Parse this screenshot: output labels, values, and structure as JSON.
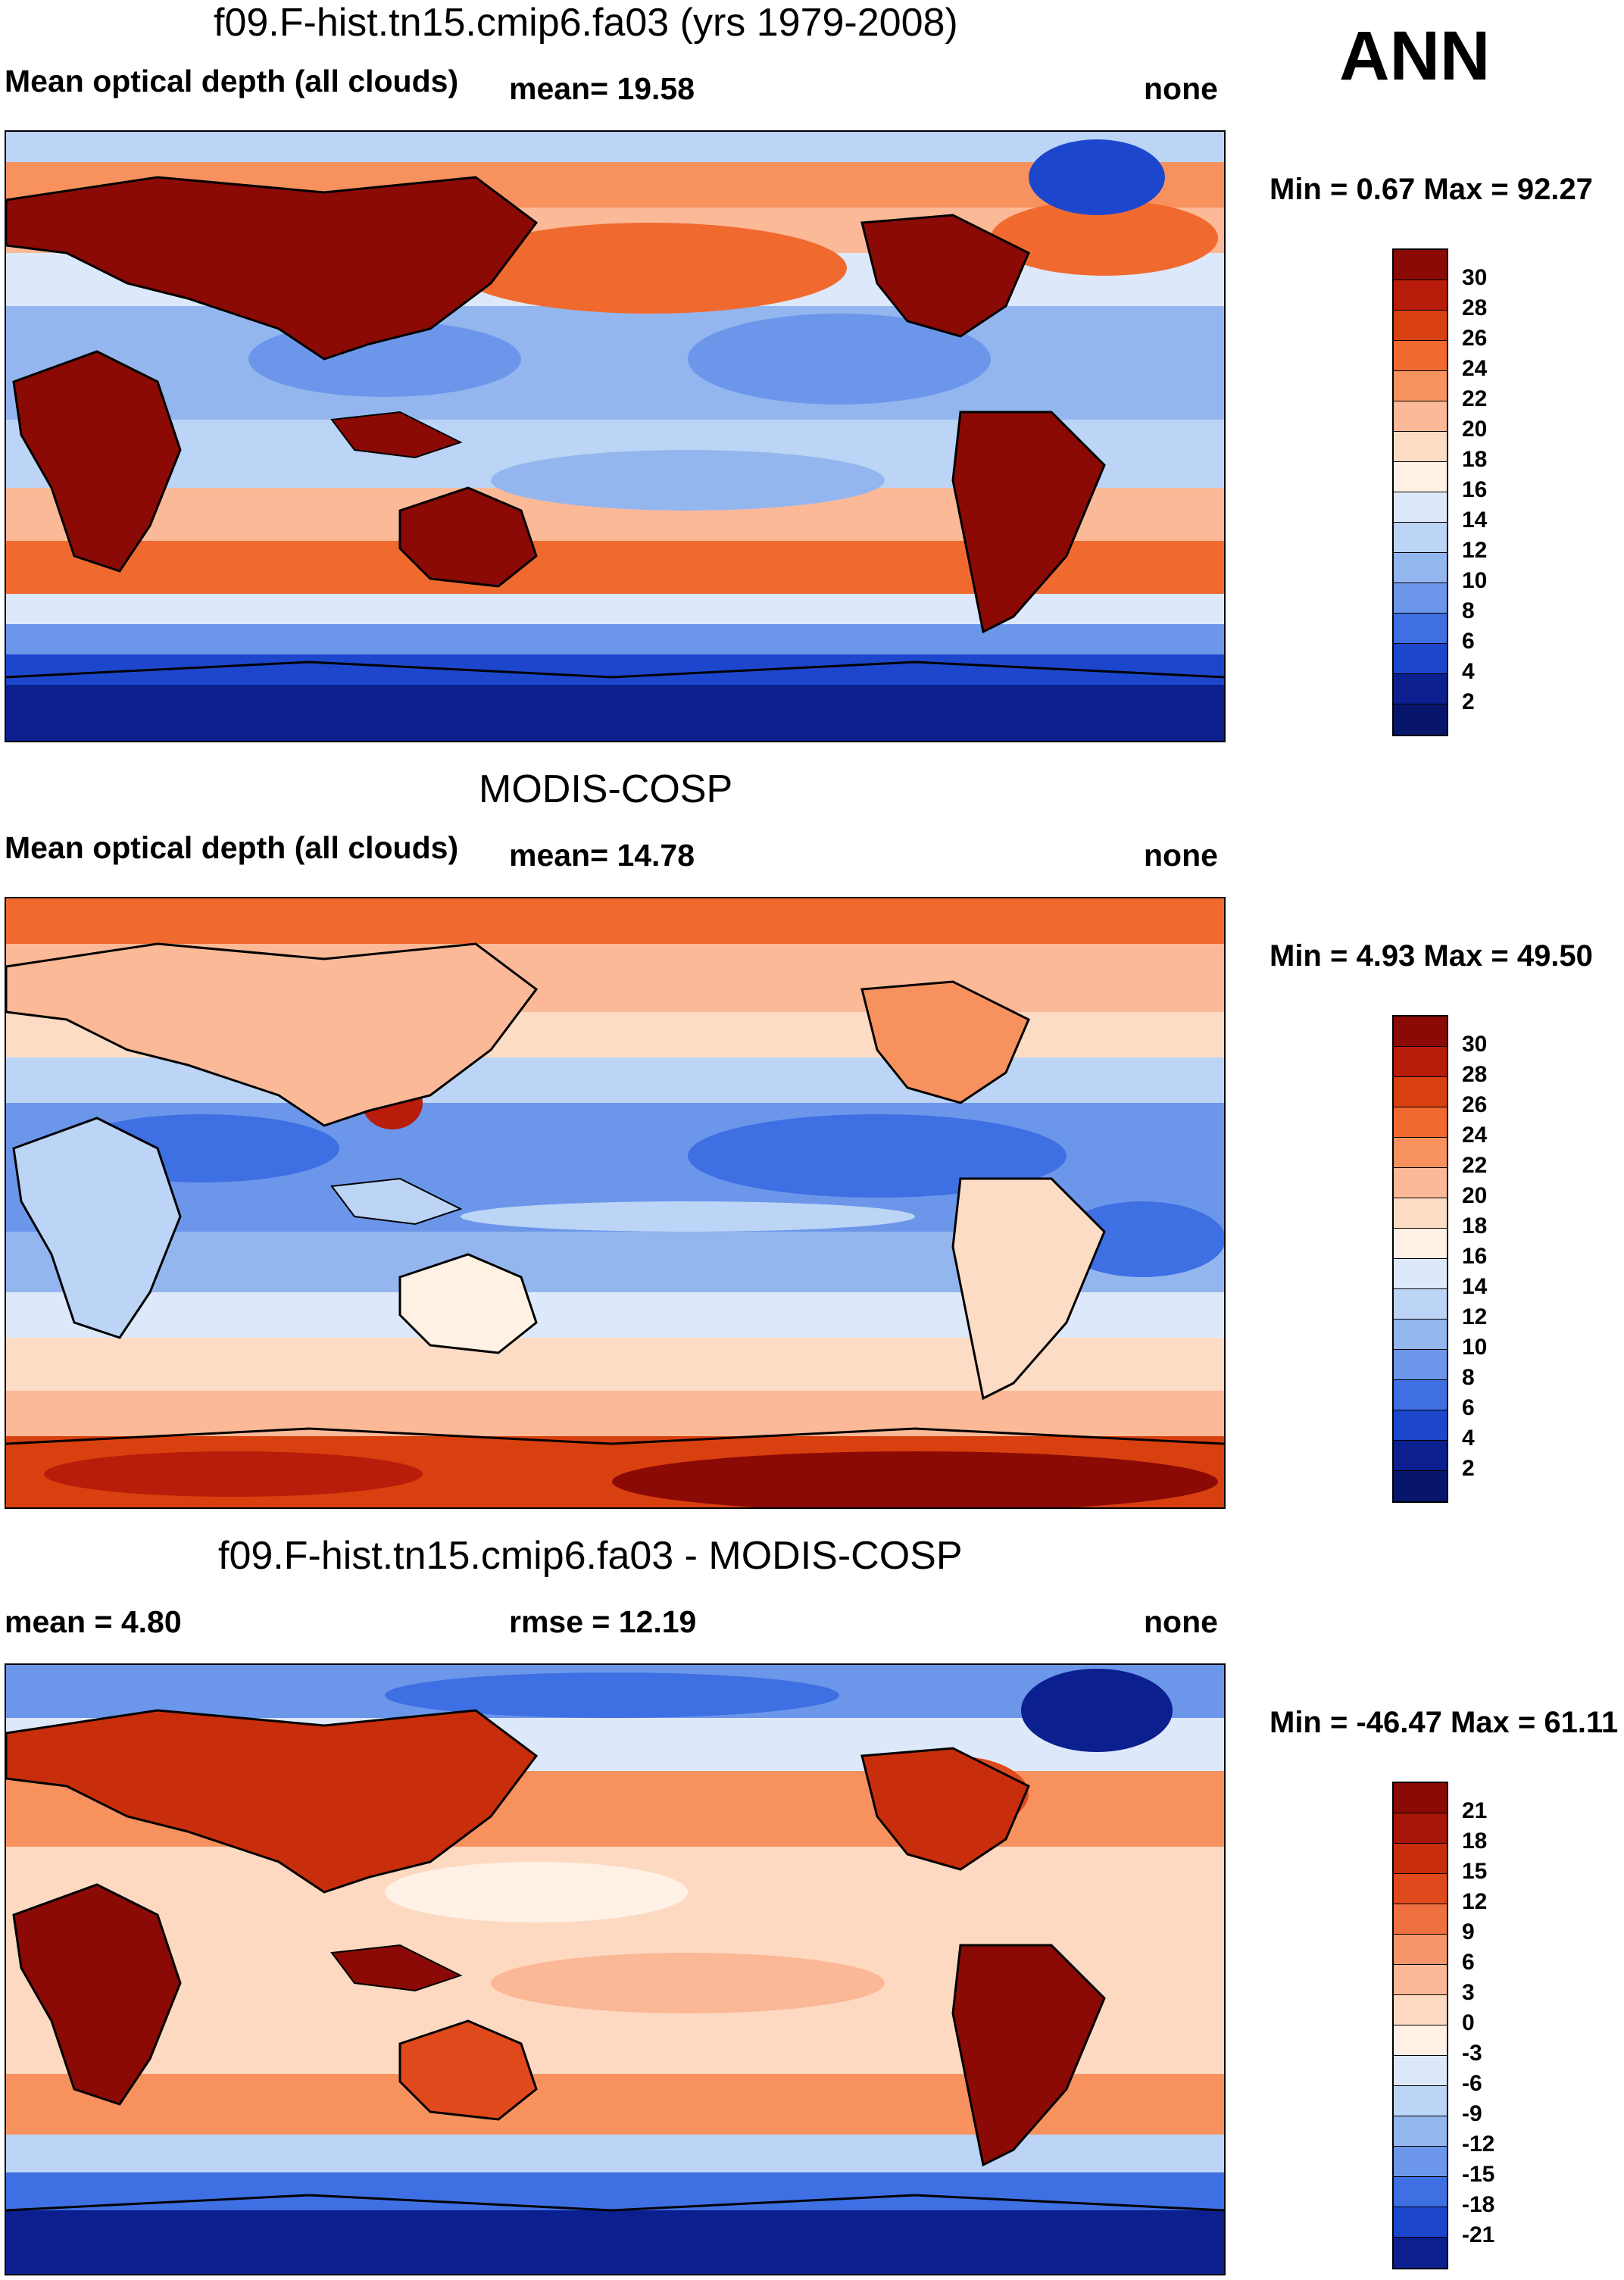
{
  "season": "ANN",
  "panels": [
    {
      "title": "f09.F-hist.tn15.cmip6.fa03 (yrs 1979-2008)",
      "left_label": "Mean optical depth (all clouds)",
      "center_label": "mean=  19.58",
      "right_label": "none",
      "minmax": "Min =   0.67 Max =  92.27",
      "colorbar_labels": [
        "30",
        "28",
        "26",
        "24",
        "22",
        "20",
        "18",
        "16",
        "14",
        "12",
        "10",
        "8",
        "6",
        "4",
        "2"
      ],
      "colors": [
        "#8b0a06",
        "#b81c0a",
        "#d9400f",
        "#f06a30",
        "#f7925f",
        "#fbb998",
        "#fcdcc4",
        "#fff2e4",
        "#dde9fa",
        "#bcd4f5",
        "#94b6ef",
        "#6b96ea",
        "#3e6fe3",
        "#1c47cd",
        "#0b1f8e"
      ]
    },
    {
      "title": "MODIS-COSP",
      "left_label": "Mean optical depth (all clouds)",
      "center_label": "mean=  14.78",
      "right_label": "none",
      "minmax": "Min =   4.93 Max =  49.50",
      "colorbar_labels": [
        "30",
        "28",
        "26",
        "24",
        "22",
        "20",
        "18",
        "16",
        "14",
        "12",
        "10",
        "8",
        "6",
        "4",
        "2"
      ],
      "colors": [
        "#8b0a06",
        "#b81c0a",
        "#d9400f",
        "#f06a30",
        "#f7925f",
        "#fbb998",
        "#fcdcc4",
        "#fff2e4",
        "#dde9fa",
        "#bcd4f5",
        "#94b6ef",
        "#6b96ea",
        "#3e6fe3",
        "#1c47cd",
        "#0b1f8e"
      ]
    },
    {
      "title": "f09.F-hist.tn15.cmip6.fa03 - MODIS-COSP",
      "left_label": "mean =    4.80",
      "center_label": "rmse =  12.19",
      "right_label": "none",
      "minmax": "Min = -46.47 Max =  61.11",
      "colorbar_labels": [
        "21",
        "18",
        "15",
        "12",
        "9",
        "6",
        "3",
        "0",
        "-3",
        "-6",
        "-9",
        "-12",
        "-15",
        "-18",
        "-21"
      ],
      "colors": [
        "#8b0a06",
        "#a8160a",
        "#c82d0c",
        "#e0491c",
        "#ef7040",
        "#f7956a",
        "#fbb896",
        "#fdd9c1",
        "#fff1e6",
        "#dde9fa",
        "#bcd4f5",
        "#94b6ef",
        "#6b96ea",
        "#3e6fe3",
        "#1c47cd",
        "#0b1f8e"
      ]
    }
  ]
}
